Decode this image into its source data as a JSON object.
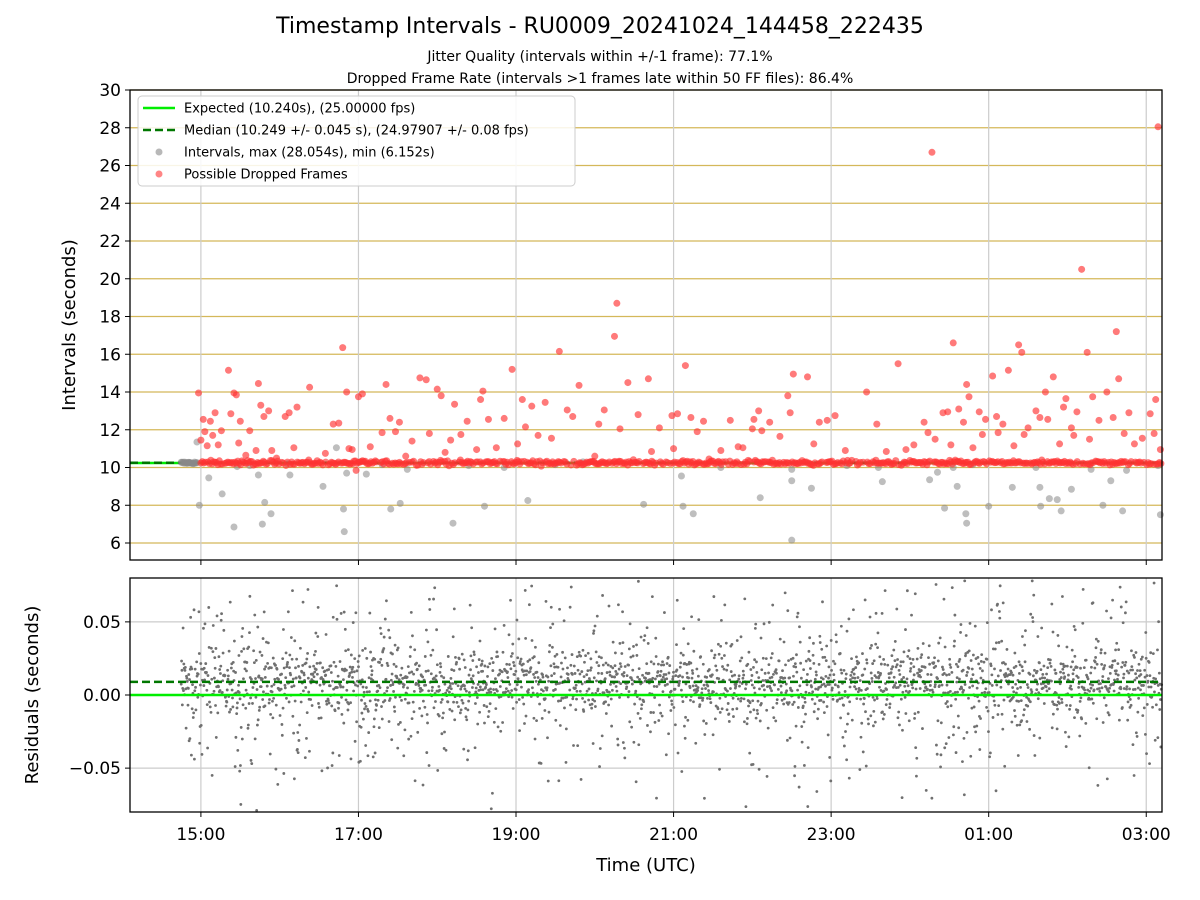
{
  "title": "Timestamp Intervals - RU0009_20241024_144458_222435",
  "subtitle_jitter": "Jitter Quality (intervals within +/-1 frame): 77.1%",
  "subtitle_dropped": "Dropped Frame Rate (intervals >1 frames late within 50 FF files): 86.4%",
  "chart_data": [
    {
      "type": "scatter",
      "panel": "top",
      "ylabel": "Intervals (seconds)",
      "ylim": [
        5.1,
        30
      ],
      "yticks": [
        6,
        8,
        10,
        12,
        14,
        16,
        18,
        20,
        22,
        24,
        26,
        28,
        30
      ],
      "xlim": [
        14.1,
        27.2
      ],
      "grid": true,
      "legend_position": "upper-left",
      "legend": [
        {
          "label": "Expected (10.240s), (25.00000 fps)",
          "style": "solid-line",
          "color": "#00ee00"
        },
        {
          "label": "Median (10.249 +/- 0.045 s), (24.97907 +/- 0.08 fps)",
          "style": "dashed-line",
          "color": "#007700"
        },
        {
          "label": "Intervals, max (28.054s), min (6.152s)",
          "style": "marker",
          "color": "#888888"
        },
        {
          "label": "Possible Dropped Frames",
          "style": "marker",
          "color": "#ff3333"
        }
      ],
      "expected": 10.24,
      "median": 10.249,
      "series": [
        {
          "name": "Intervals, max (28.054s), min (6.152s)",
          "color": "#888888",
          "points": [
            [
              14.86,
              10.25
            ],
            [
              14.95,
              11.35
            ],
            [
              14.98,
              8.0
            ],
            [
              15.1,
              9.45
            ],
            [
              15.27,
              8.6
            ],
            [
              15.42,
              6.85
            ],
            [
              15.46,
              10.05
            ],
            [
              15.62,
              10.1
            ],
            [
              15.73,
              9.6
            ],
            [
              15.78,
              7.0
            ],
            [
              15.81,
              8.15
            ],
            [
              15.89,
              7.55
            ],
            [
              16.1,
              10.2
            ],
            [
              16.13,
              9.6
            ],
            [
              16.55,
              9.0
            ],
            [
              16.72,
              11.05
            ],
            [
              16.81,
              7.8
            ],
            [
              16.82,
              6.6
            ],
            [
              16.85,
              9.7
            ],
            [
              17.1,
              9.65
            ],
            [
              17.3,
              10.15
            ],
            [
              17.41,
              7.8
            ],
            [
              17.53,
              8.1
            ],
            [
              17.62,
              9.9
            ],
            [
              18.2,
              7.05
            ],
            [
              18.4,
              10.1
            ],
            [
              18.6,
              7.95
            ],
            [
              18.85,
              10.0
            ],
            [
              19.15,
              8.25
            ],
            [
              19.5,
              10.15
            ],
            [
              19.85,
              10.3
            ],
            [
              20.62,
              8.05
            ],
            [
              21.1,
              9.55
            ],
            [
              21.12,
              7.95
            ],
            [
              21.25,
              7.55
            ],
            [
              21.6,
              10.0
            ],
            [
              22.1,
              8.4
            ],
            [
              22.5,
              6.15
            ],
            [
              22.5,
              9.3
            ],
            [
              22.5,
              9.9
            ],
            [
              22.75,
              8.9
            ],
            [
              23.2,
              10.1
            ],
            [
              23.6,
              10.0
            ],
            [
              23.65,
              9.25
            ],
            [
              24.25,
              9.35
            ],
            [
              24.35,
              9.75
            ],
            [
              24.44,
              7.85
            ],
            [
              24.55,
              10.0
            ],
            [
              24.6,
              9.0
            ],
            [
              24.71,
              7.55
            ],
            [
              24.72,
              7.05
            ],
            [
              24.8,
              10.15
            ],
            [
              25.0,
              7.95
            ],
            [
              25.3,
              8.95
            ],
            [
              25.6,
              10.0
            ],
            [
              25.65,
              8.95
            ],
            [
              25.66,
              7.95
            ],
            [
              25.77,
              8.35
            ],
            [
              25.87,
              8.3
            ],
            [
              25.92,
              7.7
            ],
            [
              26.05,
              8.85
            ],
            [
              26.3,
              9.9
            ],
            [
              26.45,
              8.0
            ],
            [
              26.55,
              9.3
            ],
            [
              26.7,
              7.7
            ],
            [
              26.75,
              9.85
            ],
            [
              27.18,
              7.5
            ],
            [
              27.15,
              10.1
            ]
          ]
        },
        {
          "name": "Possible Dropped Frames",
          "color": "#ff3333",
          "points": [
            [
              14.97,
              13.95
            ],
            [
              15.0,
              11.45
            ],
            [
              15.03,
              12.55
            ],
            [
              15.05,
              11.9
            ],
            [
              15.08,
              11.15
            ],
            [
              15.12,
              12.45
            ],
            [
              15.15,
              11.7
            ],
            [
              15.18,
              12.9
            ],
            [
              15.22,
              11.2
            ],
            [
              15.26,
              11.95
            ],
            [
              15.35,
              15.15
            ],
            [
              15.38,
              12.85
            ],
            [
              15.42,
              13.95
            ],
            [
              15.45,
              13.85
            ],
            [
              15.48,
              11.3
            ],
            [
              15.5,
              12.45
            ],
            [
              15.57,
              10.65
            ],
            [
              15.62,
              11.95
            ],
            [
              15.7,
              10.9
            ],
            [
              15.73,
              14.45
            ],
            [
              15.76,
              13.3
            ],
            [
              15.8,
              12.7
            ],
            [
              15.86,
              13.0
            ],
            [
              15.9,
              10.9
            ],
            [
              15.96,
              10.5
            ],
            [
              16.07,
              12.7
            ],
            [
              16.12,
              12.9
            ],
            [
              16.18,
              11.05
            ],
            [
              16.22,
              13.2
            ],
            [
              16.38,
              14.25
            ],
            [
              16.58,
              10.75
            ],
            [
              16.68,
              12.3
            ],
            [
              16.75,
              12.35
            ],
            [
              16.8,
              16.35
            ],
            [
              16.85,
              14.0
            ],
            [
              16.88,
              11.0
            ],
            [
              16.92,
              10.95
            ],
            [
              16.97,
              9.85
            ],
            [
              17.0,
              13.75
            ],
            [
              17.05,
              13.9
            ],
            [
              17.15,
              11.1
            ],
            [
              17.3,
              11.85
            ],
            [
              17.35,
              14.4
            ],
            [
              17.4,
              12.6
            ],
            [
              17.47,
              11.9
            ],
            [
              17.52,
              12.4
            ],
            [
              17.6,
              10.6
            ],
            [
              17.68,
              11.4
            ],
            [
              17.78,
              14.75
            ],
            [
              17.86,
              14.65
            ],
            [
              17.9,
              11.8
            ],
            [
              18.0,
              14.15
            ],
            [
              18.05,
              13.8
            ],
            [
              18.1,
              10.8
            ],
            [
              18.17,
              11.45
            ],
            [
              18.22,
              13.35
            ],
            [
              18.3,
              11.75
            ],
            [
              18.38,
              12.45
            ],
            [
              18.5,
              10.95
            ],
            [
              18.55,
              13.6
            ],
            [
              18.58,
              14.05
            ],
            [
              18.65,
              12.55
            ],
            [
              18.75,
              11.05
            ],
            [
              18.85,
              12.6
            ],
            [
              18.95,
              15.2
            ],
            [
              19.02,
              11.25
            ],
            [
              19.08,
              13.6
            ],
            [
              19.12,
              12.15
            ],
            [
              19.2,
              13.25
            ],
            [
              19.28,
              11.7
            ],
            [
              19.37,
              13.45
            ],
            [
              19.45,
              11.55
            ],
            [
              19.55,
              16.15
            ],
            [
              19.65,
              13.05
            ],
            [
              19.72,
              12.7
            ],
            [
              19.8,
              14.35
            ],
            [
              20.0,
              10.6
            ],
            [
              20.05,
              12.3
            ],
            [
              20.12,
              13.05
            ],
            [
              20.25,
              16.95
            ],
            [
              20.28,
              18.7
            ],
            [
              20.32,
              12.05
            ],
            [
              20.42,
              14.5
            ],
            [
              20.55,
              12.8
            ],
            [
              20.68,
              14.7
            ],
            [
              20.72,
              10.85
            ],
            [
              20.82,
              12.1
            ],
            [
              20.98,
              12.75
            ],
            [
              21.05,
              12.85
            ],
            [
              21.0,
              11.0
            ],
            [
              21.15,
              15.4
            ],
            [
              21.22,
              12.65
            ],
            [
              21.3,
              11.9
            ],
            [
              21.38,
              12.45
            ],
            [
              21.45,
              10.45
            ],
            [
              21.6,
              10.9
            ],
            [
              21.72,
              12.5
            ],
            [
              21.82,
              11.1
            ],
            [
              21.88,
              11.05
            ],
            [
              22.0,
              12.05
            ],
            [
              22.02,
              12.55
            ],
            [
              22.08,
              13.0
            ],
            [
              22.12,
              11.95
            ],
            [
              22.22,
              12.4
            ],
            [
              22.35,
              11.65
            ],
            [
              22.45,
              13.8
            ],
            [
              22.48,
              12.9
            ],
            [
              22.52,
              14.95
            ],
            [
              22.7,
              14.8
            ],
            [
              22.78,
              11.25
            ],
            [
              22.85,
              12.4
            ],
            [
              22.95,
              12.5
            ],
            [
              23.05,
              12.75
            ],
            [
              23.18,
              10.9
            ],
            [
              23.45,
              14.0
            ],
            [
              23.58,
              12.3
            ],
            [
              23.7,
              10.85
            ],
            [
              23.85,
              15.5
            ],
            [
              23.95,
              10.95
            ],
            [
              24.05,
              11.2
            ],
            [
              24.18,
              12.4
            ],
            [
              24.23,
              11.85
            ],
            [
              24.28,
              26.7
            ],
            [
              24.32,
              11.5
            ],
            [
              24.42,
              12.9
            ],
            [
              24.48,
              12.95
            ],
            [
              24.52,
              11.2
            ],
            [
              24.55,
              16.6
            ],
            [
              24.62,
              13.1
            ],
            [
              24.68,
              12.4
            ],
            [
              24.72,
              14.4
            ],
            [
              24.75,
              13.75
            ],
            [
              24.8,
              11.05
            ],
            [
              24.88,
              12.95
            ],
            [
              24.92,
              11.75
            ],
            [
              24.96,
              12.55
            ],
            [
              25.05,
              14.85
            ],
            [
              25.1,
              12.7
            ],
            [
              25.12,
              11.85
            ],
            [
              25.18,
              12.3
            ],
            [
              25.25,
              15.15
            ],
            [
              25.32,
              11.15
            ],
            [
              25.38,
              16.5
            ],
            [
              25.42,
              16.1
            ],
            [
              25.45,
              11.75
            ],
            [
              25.5,
              12.1
            ],
            [
              25.6,
              13.0
            ],
            [
              25.65,
              12.65
            ],
            [
              25.72,
              14.0
            ],
            [
              25.75,
              12.55
            ],
            [
              25.82,
              14.8
            ],
            [
              25.9,
              11.25
            ],
            [
              25.95,
              13.2
            ],
            [
              25.98,
              13.65
            ],
            [
              26.05,
              12.1
            ],
            [
              26.08,
              11.7
            ],
            [
              26.12,
              12.95
            ],
            [
              26.18,
              20.5
            ],
            [
              26.25,
              16.1
            ],
            [
              26.28,
              11.5
            ],
            [
              26.32,
              13.75
            ],
            [
              26.4,
              12.5
            ],
            [
              26.5,
              14.0
            ],
            [
              26.58,
              12.65
            ],
            [
              26.62,
              17.2
            ],
            [
              26.65,
              14.7
            ],
            [
              26.72,
              11.8
            ],
            [
              26.78,
              12.9
            ],
            [
              26.85,
              11.25
            ],
            [
              26.95,
              11.55
            ],
            [
              27.05,
              12.85
            ],
            [
              27.12,
              13.6
            ],
            [
              27.15,
              28.05
            ],
            [
              27.18,
              10.95
            ],
            [
              27.1,
              11.8
            ]
          ]
        }
      ]
    },
    {
      "type": "scatter",
      "panel": "bottom",
      "ylabel": "Residuals (seconds)",
      "xlabel": "Time (UTC)",
      "ylim": [
        -0.08,
        0.08
      ],
      "yticks": [
        -0.05,
        0.0,
        0.05
      ],
      "ytick_labels": [
        "−0.05",
        "0.00",
        "0.05"
      ],
      "xlim": [
        14.1,
        27.2
      ],
      "xticks": [
        15,
        17,
        19,
        21,
        23,
        25,
        27
      ],
      "xtick_labels": [
        "15:00",
        "17:00",
        "19:00",
        "21:00",
        "23:00",
        "01:00",
        "03:00"
      ],
      "grid": true,
      "expected_residual": 0.0,
      "median_residual": 0.009,
      "residual_spread": 0.035,
      "residual_count": 2600,
      "residual_start": 14.75
    }
  ]
}
